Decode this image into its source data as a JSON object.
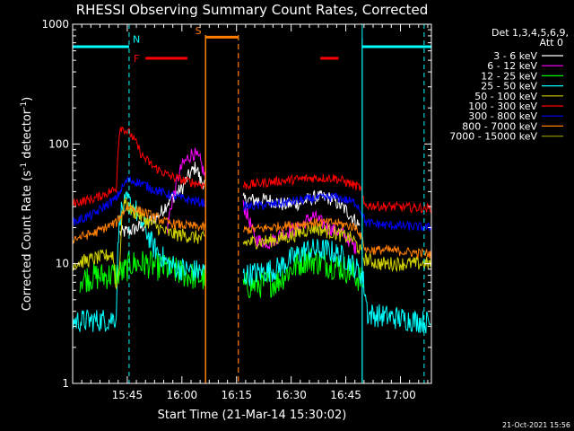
{
  "page": {
    "background": "#000000",
    "foreground": "#ffffff"
  },
  "chart_data": {
    "type": "line",
    "title": "RHESSI Observing Summary Count Rates, Corrected",
    "xlabel": "Start Time (21-Mar-14 15:30:02)",
    "ylabel_text": "Corrected Count Rate (s",
    "ylabel_sup1": "-1",
    "ylabel_mid": " detector",
    "ylabel_sup2": "-1",
    "ylabel_end": ")",
    "y_scale": "log",
    "ylim": [
      1,
      1000
    ],
    "xlim_minutes": [
      0,
      98.5
    ],
    "x_tick_labels": [
      {
        "label": "15:45",
        "minute": 15
      },
      {
        "label": "16:00",
        "minute": 30
      },
      {
        "label": "16:15",
        "minute": 45
      },
      {
        "label": "16:30",
        "minute": 60
      },
      {
        "label": "16:45",
        "minute": 75
      },
      {
        "label": "17:00",
        "minute": 90
      }
    ],
    "y_tick_labels": [
      {
        "label": "1",
        "value": 1
      },
      {
        "label": "10",
        "value": 10
      },
      {
        "label": "100",
        "value": 100
      },
      {
        "label": "1000",
        "value": 1000
      }
    ],
    "legend_header": [
      "Det 1,3,4,5,6,9,",
      "Att 0"
    ],
    "legend_placement": "right",
    "series": [
      {
        "name": "3 - 6 keV",
        "color": "#ffffff"
      },
      {
        "name": "6 - 12 keV",
        "color": "#ff00ff"
      },
      {
        "name": "12 - 25 keV",
        "color": "#00ff00"
      },
      {
        "name": "25 - 50 keV",
        "color": "#00ffff"
      },
      {
        "name": "50 - 100 keV",
        "color": "#d2d200"
      },
      {
        "name": "100 - 300 keV",
        "color": "#ff0000"
      },
      {
        "name": "300 - 800 keV",
        "color": "#0000ff"
      },
      {
        "name": "800 - 7000 keV",
        "color": "#ff7f00"
      },
      {
        "name": "7000 - 15000 keV",
        "color": "#8b8b00"
      }
    ],
    "flag_labels": {
      "N": "N",
      "F": "F",
      "S": "S"
    },
    "flag_colors": {
      "night": "#00ffff",
      "flare": "#ff0000",
      "saa": "#ff7f00"
    },
    "night_intervals_minutes": [
      [
        0,
        15.5
      ],
      [
        79.5,
        98.5
      ]
    ],
    "night_boundaries_minutes": [
      15.5,
      79.5,
      96.5
    ],
    "saa_interval_minutes": [
      36.5,
      45.5
    ],
    "flare_intervals_minutes": [
      [
        20,
        31.5
      ],
      [
        68,
        73
      ]
    ]
  },
  "footer": {
    "timestamp": "21-Oct-2021 15:56"
  }
}
